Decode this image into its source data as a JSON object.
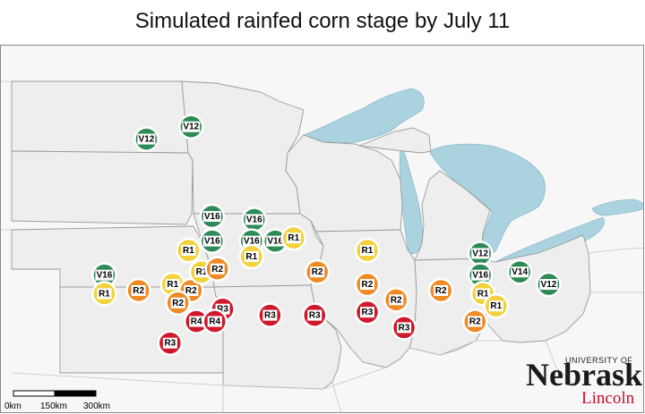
{
  "title": "Simulated rainfed corn stage by July 11",
  "colors": {
    "V12": "#2e8b57",
    "V14": "#2e8b57",
    "V16": "#2e8b57",
    "R1": "#f2d23a",
    "R2": "#f08a24",
    "R3": "#d0182a",
    "R4": "#d0182a",
    "land": "#eeeeee",
    "border": "#999999",
    "water": "#aad3df"
  },
  "sites": [
    {
      "stage": "V12",
      "lon": -96.2,
      "lat": 46.9
    },
    {
      "stage": "V12",
      "lon": -97.9,
      "lat": 46.5
    },
    {
      "stage": "V16",
      "lon": -95.4,
      "lat": 44.0
    },
    {
      "stage": "V16",
      "lon": -93.8,
      "lat": 43.9
    },
    {
      "stage": "V16",
      "lon": -95.4,
      "lat": 43.2
    },
    {
      "stage": "V16",
      "lon": -93.9,
      "lat": 43.2
    },
    {
      "stage": "V16",
      "lon": -93.0,
      "lat": 43.2
    },
    {
      "stage": "R1",
      "lon": -92.3,
      "lat": 43.3
    },
    {
      "stage": "R1",
      "lon": -96.3,
      "lat": 42.9
    },
    {
      "stage": "R1",
      "lon": -93.9,
      "lat": 42.7
    },
    {
      "stage": "R1",
      "lon": -89.5,
      "lat": 42.9
    },
    {
      "stage": "V12",
      "lon": -85.2,
      "lat": 42.8
    },
    {
      "stage": "V14",
      "lon": -83.7,
      "lat": 42.2
    },
    {
      "stage": "V16",
      "lon": -85.2,
      "lat": 42.1
    },
    {
      "stage": "V12",
      "lon": -82.6,
      "lat": 41.8
    },
    {
      "stage": "V16",
      "lon": -99.5,
      "lat": 42.1
    },
    {
      "stage": "R1",
      "lon": -99.5,
      "lat": 41.5
    },
    {
      "stage": "R2",
      "lon": -98.2,
      "lat": 41.6
    },
    {
      "stage": "R1",
      "lon": -96.9,
      "lat": 41.8
    },
    {
      "stage": "R2",
      "lon": -96.2,
      "lat": 41.6
    },
    {
      "stage": "R1",
      "lon": -95.8,
      "lat": 42.2
    },
    {
      "stage": "R2",
      "lon": -95.2,
      "lat": 42.3
    },
    {
      "stage": "R2",
      "lon": -96.7,
      "lat": 41.2
    },
    {
      "stage": "R2",
      "lon": -91.4,
      "lat": 42.2
    },
    {
      "stage": "R2",
      "lon": -89.5,
      "lat": 41.8
    },
    {
      "stage": "R2",
      "lon": -88.4,
      "lat": 41.3
    },
    {
      "stage": "R2",
      "lon": -86.7,
      "lat": 41.6
    },
    {
      "stage": "R1",
      "lon": -85.1,
      "lat": 41.5
    },
    {
      "stage": "R1",
      "lon": -84.6,
      "lat": 41.1
    },
    {
      "stage": "R2",
      "lon": -85.4,
      "lat": 40.6
    },
    {
      "stage": "R3",
      "lon": -95.0,
      "lat": 41.0
    },
    {
      "stage": "R3",
      "lon": -93.2,
      "lat": 40.8
    },
    {
      "stage": "R3",
      "lon": -91.5,
      "lat": 40.8
    },
    {
      "stage": "R3",
      "lon": -89.5,
      "lat": 40.9
    },
    {
      "stage": "R3",
      "lon": -88.1,
      "lat": 40.4
    },
    {
      "stage": "R4",
      "lon": -96.0,
      "lat": 40.6
    },
    {
      "stage": "R4",
      "lon": -95.3,
      "lat": 40.6
    },
    {
      "stage": "R3",
      "lon": -97.0,
      "lat": 39.9
    }
  ],
  "scale_bar": {
    "labels": [
      "0km",
      "150km",
      "300km"
    ]
  },
  "logo": {
    "line1": "UNIVERSITY OF",
    "line2": "Nebraska",
    "line3": "Lincoln"
  }
}
